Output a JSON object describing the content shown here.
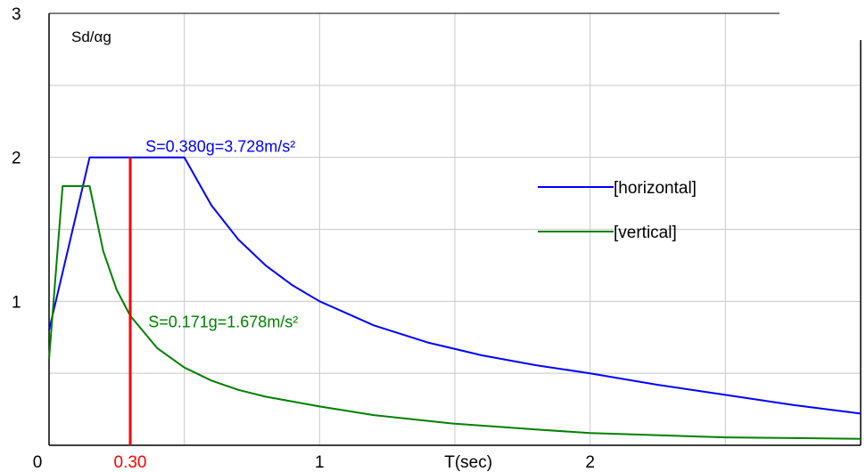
{
  "chart_data": {
    "type": "line",
    "xlabel": "T(sec)",
    "ylabel": "Sd/αg",
    "xlim": [
      0,
      3
    ],
    "ylim": [
      0,
      3
    ],
    "grid": true,
    "x_ticks": [
      {
        "value": 0,
        "label": "0"
      },
      {
        "value": 1,
        "label": "1"
      },
      {
        "value": 2,
        "label": "2"
      }
    ],
    "y_ticks": [
      {
        "value": 1,
        "label": "1"
      },
      {
        "value": 2,
        "label": "2"
      },
      {
        "value": 3,
        "label": "3"
      }
    ],
    "x_grid": [
      0.5,
      1,
      1.5,
      2,
      2.5
    ],
    "y_grid": [
      0.5,
      1,
      1.5,
      2,
      2.5
    ],
    "marker": {
      "x": 0.3,
      "label": "0.30",
      "color": "#ff0000"
    },
    "series": [
      {
        "name": "[horizontal]",
        "color": "#0000ff",
        "points": [
          [
            0.0,
            0.8
          ],
          [
            0.15,
            2.0
          ],
          [
            0.5,
            2.0
          ],
          [
            0.6,
            1.667
          ],
          [
            0.7,
            1.429
          ],
          [
            0.8,
            1.25
          ],
          [
            0.9,
            1.111
          ],
          [
            1.0,
            1.0
          ],
          [
            1.2,
            0.833
          ],
          [
            1.4,
            0.714
          ],
          [
            1.6,
            0.625
          ],
          [
            1.8,
            0.556
          ],
          [
            2.0,
            0.5
          ],
          [
            2.25,
            0.42
          ],
          [
            2.5,
            0.35
          ],
          [
            2.75,
            0.28
          ],
          [
            3.0,
            0.22
          ]
        ]
      },
      {
        "name": "[vertical]",
        "color": "#008000",
        "points": [
          [
            0.0,
            0.6
          ],
          [
            0.05,
            1.8
          ],
          [
            0.15,
            1.8
          ],
          [
            0.2,
            1.35
          ],
          [
            0.25,
            1.08
          ],
          [
            0.3,
            0.9
          ],
          [
            0.4,
            0.675
          ],
          [
            0.5,
            0.54
          ],
          [
            0.6,
            0.45
          ],
          [
            0.7,
            0.385
          ],
          [
            0.8,
            0.338
          ],
          [
            1.0,
            0.27
          ],
          [
            1.2,
            0.21
          ],
          [
            1.5,
            0.15
          ],
          [
            1.8,
            0.11
          ],
          [
            2.0,
            0.085
          ],
          [
            2.5,
            0.055
          ],
          [
            3.0,
            0.045
          ]
        ]
      }
    ],
    "annotations": [
      {
        "text": "S=0.380g=3.728m/s²",
        "x": 0.35,
        "y": 2.0,
        "color": "#0000ff"
      },
      {
        "text": "S=0.171g=1.678m/s²",
        "x": 0.36,
        "y": 0.9,
        "color": "#008000"
      }
    ],
    "legend": {
      "position": "right"
    }
  }
}
